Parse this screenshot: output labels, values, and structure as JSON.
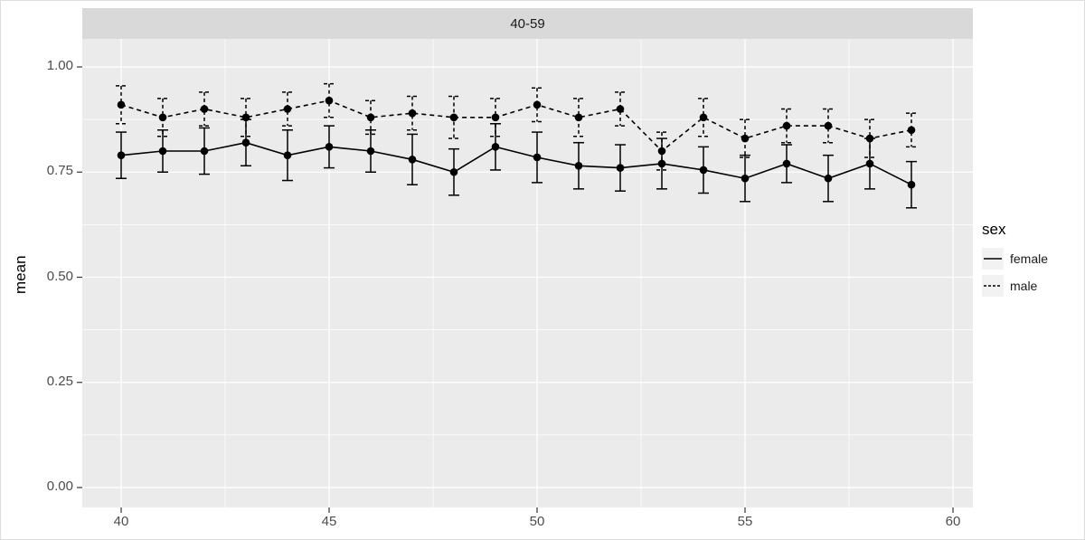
{
  "chart_data": {
    "type": "line",
    "facet_label": "40-59",
    "title": "",
    "xlabel": "",
    "ylabel": "mean",
    "x": [
      40,
      41,
      42,
      43,
      44,
      45,
      46,
      47,
      48,
      49,
      50,
      51,
      52,
      53,
      54,
      55,
      56,
      57,
      58,
      59
    ],
    "series": [
      {
        "name": "female",
        "linetype": "solid",
        "values": [
          0.79,
          0.8,
          0.8,
          0.82,
          0.79,
          0.81,
          0.8,
          0.78,
          0.75,
          0.81,
          0.785,
          0.765,
          0.76,
          0.77,
          0.755,
          0.735,
          0.77,
          0.735,
          0.77,
          0.72
        ],
        "errors": [
          0.055,
          0.05,
          0.055,
          0.055,
          0.06,
          0.05,
          0.05,
          0.06,
          0.055,
          0.055,
          0.06,
          0.055,
          0.055,
          0.06,
          0.055,
          0.055,
          0.045,
          0.055,
          0.06,
          0.055
        ]
      },
      {
        "name": "male",
        "linetype": "dashed",
        "values": [
          0.91,
          0.88,
          0.9,
          0.88,
          0.9,
          0.92,
          0.88,
          0.89,
          0.88,
          0.88,
          0.91,
          0.88,
          0.9,
          0.8,
          0.88,
          0.83,
          0.86,
          0.86,
          0.83,
          0.85
        ],
        "errors": [
          0.045,
          0.045,
          0.04,
          0.045,
          0.04,
          0.04,
          0.04,
          0.04,
          0.05,
          0.045,
          0.04,
          0.045,
          0.04,
          0.045,
          0.045,
          0.045,
          0.04,
          0.04,
          0.045,
          0.04
        ]
      }
    ],
    "xticks": [
      {
        "v": 40,
        "label": "40"
      },
      {
        "v": 45,
        "label": "45"
      },
      {
        "v": 50,
        "label": "50"
      },
      {
        "v": 55,
        "label": "55"
      },
      {
        "v": 60,
        "label": "60"
      }
    ],
    "yticks": [
      {
        "v": 0.0,
        "label": "0.00"
      },
      {
        "v": 0.25,
        "label": "0.25"
      },
      {
        "v": 0.5,
        "label": "0.50"
      },
      {
        "v": 0.75,
        "label": "0.75"
      },
      {
        "v": 1.0,
        "label": "1.00"
      }
    ],
    "xlim": [
      39.1,
      60.5
    ],
    "ylim": [
      -0.05,
      1.07
    ],
    "grid": true,
    "legend": {
      "title": "sex",
      "position": "right",
      "entries": [
        "female",
        "male"
      ]
    },
    "colors": {
      "panel_bg": "#EBEBEB",
      "strip_bg": "#D9D9D9",
      "grid": "#FFFFFF",
      "line": "#000000"
    }
  }
}
